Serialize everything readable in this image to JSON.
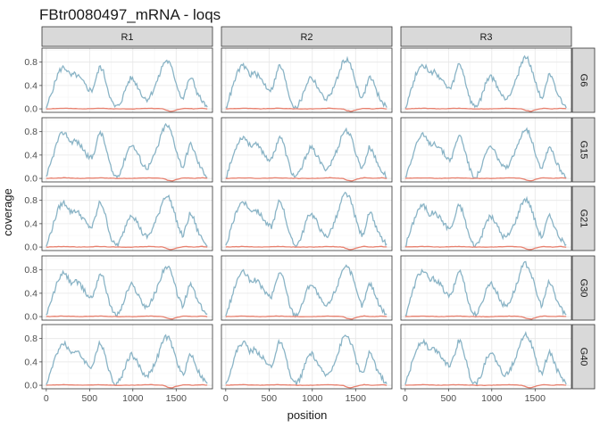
{
  "chart_data": {
    "type": "line",
    "title": "FBtr0080497_mRNA - loqs",
    "xlabel": "position",
    "ylabel": "coverage",
    "columns": [
      "R1",
      "R2",
      "R3"
    ],
    "rows": [
      "G6",
      "G15",
      "G21",
      "G30",
      "G40"
    ],
    "xlim": [
      -50,
      1920
    ],
    "ylim": [
      -0.06,
      1.04
    ],
    "x_ticks": [
      0,
      500,
      1000,
      1500
    ],
    "y_ticks": [
      0.0,
      0.4,
      0.8
    ],
    "y_tick_labels": [
      "0.0",
      "0.4",
      "0.8"
    ],
    "grid": true,
    "series_colors": {
      "coverage_a": "#8ab4c6",
      "coverage_b": "#e8806e"
    },
    "series_a_shape": {
      "x": [
        0,
        60,
        120,
        150,
        200,
        240,
        280,
        330,
        380,
        430,
        480,
        530,
        570,
        620,
        660,
        700,
        750,
        790,
        830,
        880,
        930,
        980,
        1030,
        1080,
        1120,
        1170,
        1220,
        1260,
        1300,
        1340,
        1380,
        1420,
        1460,
        1500,
        1540,
        1580,
        1620,
        1660,
        1700,
        1740,
        1780,
        1820,
        1860
      ],
      "y": [
        0.02,
        0.3,
        0.6,
        0.72,
        0.8,
        0.74,
        0.62,
        0.66,
        0.6,
        0.5,
        0.38,
        0.35,
        0.55,
        0.82,
        0.7,
        0.45,
        0.15,
        0.04,
        0.05,
        0.2,
        0.45,
        0.6,
        0.5,
        0.35,
        0.22,
        0.18,
        0.3,
        0.45,
        0.6,
        0.82,
        0.92,
        0.88,
        0.72,
        0.5,
        0.3,
        0.18,
        0.4,
        0.6,
        0.52,
        0.32,
        0.2,
        0.1,
        0.05
      ]
    },
    "series_b_shape": {
      "x": [
        0,
        200,
        400,
        600,
        800,
        1000,
        1200,
        1350,
        1400,
        1450,
        1500,
        1550,
        1600,
        1700,
        1800,
        1860
      ],
      "y": [
        0.0,
        0.01,
        0.0,
        0.01,
        0.0,
        0.0,
        0.01,
        0.0,
        -0.03,
        -0.045,
        -0.02,
        0.0,
        0.01,
        0.0,
        0.01,
        0.0
      ]
    }
  }
}
